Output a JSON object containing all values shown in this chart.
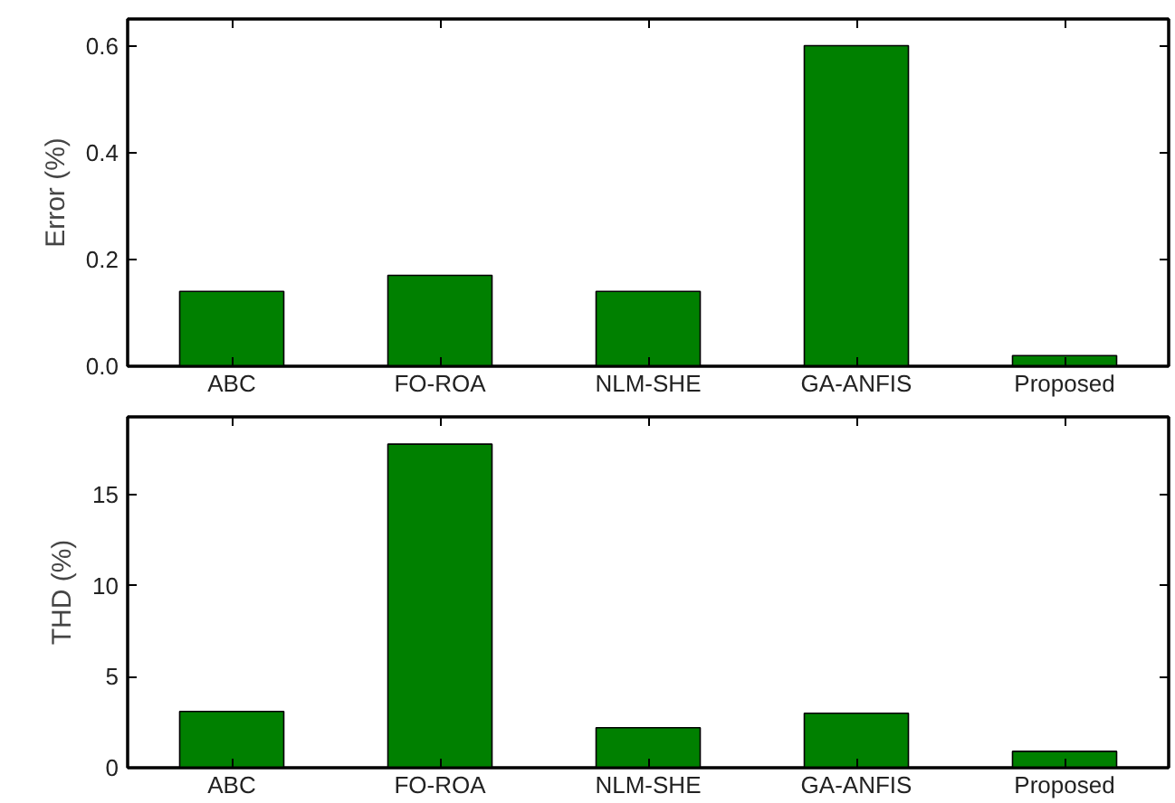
{
  "chart_data": [
    {
      "type": "bar",
      "ylabel": "Error (%)",
      "categories": [
        "ABC",
        "FO-ROA",
        "NLM-SHE",
        "GA-ANFIS",
        "Proposed"
      ],
      "values": [
        0.14,
        0.17,
        0.14,
        0.6,
        0.02
      ],
      "color": "#008000",
      "ylim": [
        0,
        0.65
      ],
      "yticks": [
        {
          "value": 0,
          "label": "0.0"
        },
        0.2,
        0.4,
        0.6
      ],
      "grid": false
    },
    {
      "type": "bar",
      "ylabel": "THD (%)",
      "categories": [
        "ABC",
        "FO-ROA",
        "NLM-SHE",
        "GA-ANFIS",
        "Proposed"
      ],
      "values": [
        3.1,
        17.8,
        2.2,
        3.0,
        0.9
      ],
      "color": "#008000",
      "ylim": [
        0,
        19.3
      ],
      "yticks": [
        0,
        5,
        10,
        15
      ],
      "grid": false
    }
  ]
}
